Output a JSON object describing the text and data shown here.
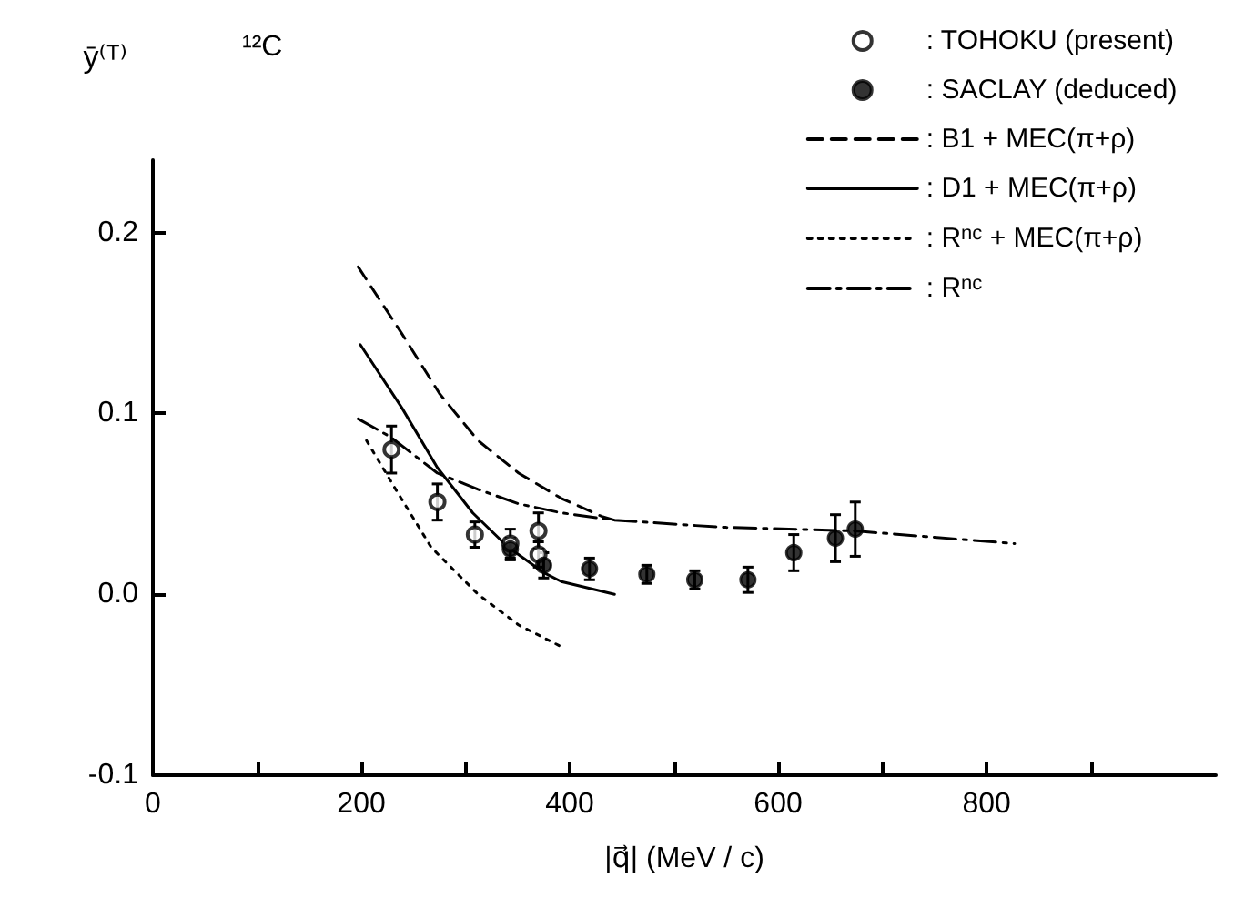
{
  "chart_data": {
    "type": "line",
    "ylabel": "ȳ⁽ᵀ⁾",
    "xlabel": "|q⃗| (MeV / c)",
    "annotations": [
      "¹²C"
    ],
    "xlim": [
      0,
      1020
    ],
    "xticks": [
      0,
      {
        "value": 100,
        "label": null
      },
      200,
      {
        "value": 300,
        "label": null
      },
      400,
      {
        "value": 500,
        "label": null
      },
      600,
      {
        "value": 700,
        "label": null
      },
      800,
      {
        "value": 900,
        "label": null
      }
    ],
    "ylim": [
      -0.1,
      0.24
    ],
    "yticks": [
      -0.1,
      {
        "value": 0,
        "label": "0.0"
      },
      0.1,
      0.2
    ],
    "legend": "top right",
    "grid": false,
    "series": [
      {
        "name": ": TOHOKU (present)",
        "type": "scatter",
        "marker": "circle_open",
        "color": "#000000",
        "x": [
          229,
          273,
          309,
          343,
          370,
          370
        ],
        "values": [
          0.08,
          0.051,
          0.033,
          0.028,
          0.035,
          0.022
        ],
        "errors": [
          0.013,
          0.01,
          0.007,
          0.008,
          0.01,
          0.007
        ]
      },
      {
        "name": ": SACLAY (deduced)",
        "type": "scatter",
        "marker": "circle",
        "color": "#000000",
        "x": [
          343,
          375,
          419,
          474,
          520,
          571,
          615,
          655,
          674
        ],
        "values": [
          0.025,
          0.016,
          0.014,
          0.011,
          0.008,
          0.008,
          0.023,
          0.031,
          0.036
        ],
        "errors": [
          0.006,
          0.007,
          0.006,
          0.005,
          0.005,
          0.007,
          0.01,
          0.013,
          0.015
        ]
      },
      {
        "name": ": B1 + MEC(π+ρ)",
        "line_style": "dashed",
        "color": "#000000",
        "x": [
          197,
          239,
          275,
          312,
          351,
          392,
          431,
          443
        ],
        "values": [
          0.181,
          0.144,
          0.111,
          0.085,
          0.067,
          0.053,
          0.043,
          0.041
        ]
      },
      {
        "name": ": D1 + MEC(π+ρ)",
        "line_style": "solid",
        "color": "#000000",
        "x": [
          199,
          239,
          273,
          307,
          341,
          375,
          392,
          443
        ],
        "values": [
          0.138,
          0.103,
          0.07,
          0.045,
          0.026,
          0.012,
          0.007,
          0.0
        ]
      },
      {
        "name": ": R$^{nc}$ + MEC(π+ρ)",
        "line_style": "dotted",
        "color": "#000000",
        "x": [
          205,
          233,
          267,
          312,
          351,
          392
        ],
        "values": [
          0.085,
          0.058,
          0.026,
          0.0,
          -0.017,
          -0.029
        ]
      },
      {
        "name": ": R$^{nc}$",
        "line_style": "dashdot",
        "color": "#000000",
        "x": [
          197,
          228,
          273,
          312,
          351,
          392,
          443,
          521,
          550,
          674,
          827
        ],
        "values": [
          0.097,
          0.087,
          0.067,
          0.058,
          0.05,
          0.045,
          0.041,
          0.038,
          0.037,
          0.035,
          0.028
        ]
      }
    ]
  }
}
